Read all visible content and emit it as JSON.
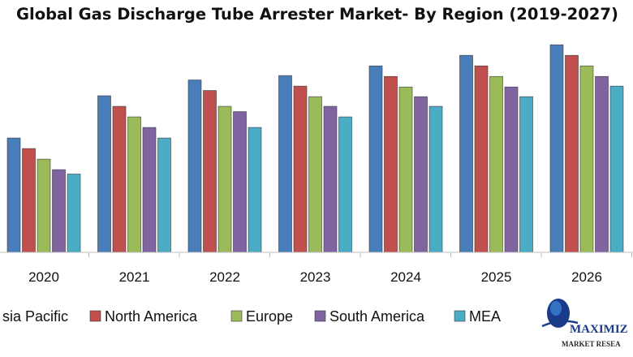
{
  "chart_data": {
    "type": "bar",
    "title": "Global Gas Discharge Tube Arrester Market- By Region (2019-2027)",
    "xlabel": "",
    "ylabel": "",
    "ylim": [
      0,
      250
    ],
    "grid": false,
    "legend_position": "bottom",
    "categories": [
      "2020",
      "2021",
      "2022",
      "2023",
      "2024",
      "2025",
      "2026"
    ],
    "series": [
      {
        "name": "Asia Pacific",
        "legend_label": "sia Pacific",
        "color": "#4a7ebb",
        "values": [
          130,
          178,
          196,
          201,
          212,
          224,
          236
        ]
      },
      {
        "name": "North America",
        "legend_label": "North America",
        "color": "#c0504d",
        "values": [
          118,
          166,
          184,
          189,
          200,
          212,
          224
        ]
      },
      {
        "name": "Europe",
        "legend_label": "Europe",
        "color": "#9bbb59",
        "values": [
          106,
          154,
          166,
          177,
          188,
          200,
          212
        ]
      },
      {
        "name": "South America",
        "legend_label": "South America",
        "color": "#8064a2",
        "values": [
          94,
          142,
          160,
          166,
          177,
          188,
          200
        ]
      },
      {
        "name": "MEA",
        "legend_label": "MEA",
        "color": "#4bacc6",
        "values": [
          89,
          130,
          142,
          154,
          166,
          177,
          189
        ]
      }
    ]
  },
  "logo": {
    "name": "MAXIMIZ",
    "tagline": "MARKET RESEA",
    "colors": {
      "primary": "#1a3a8a",
      "accent": "#3a7fd0"
    }
  }
}
